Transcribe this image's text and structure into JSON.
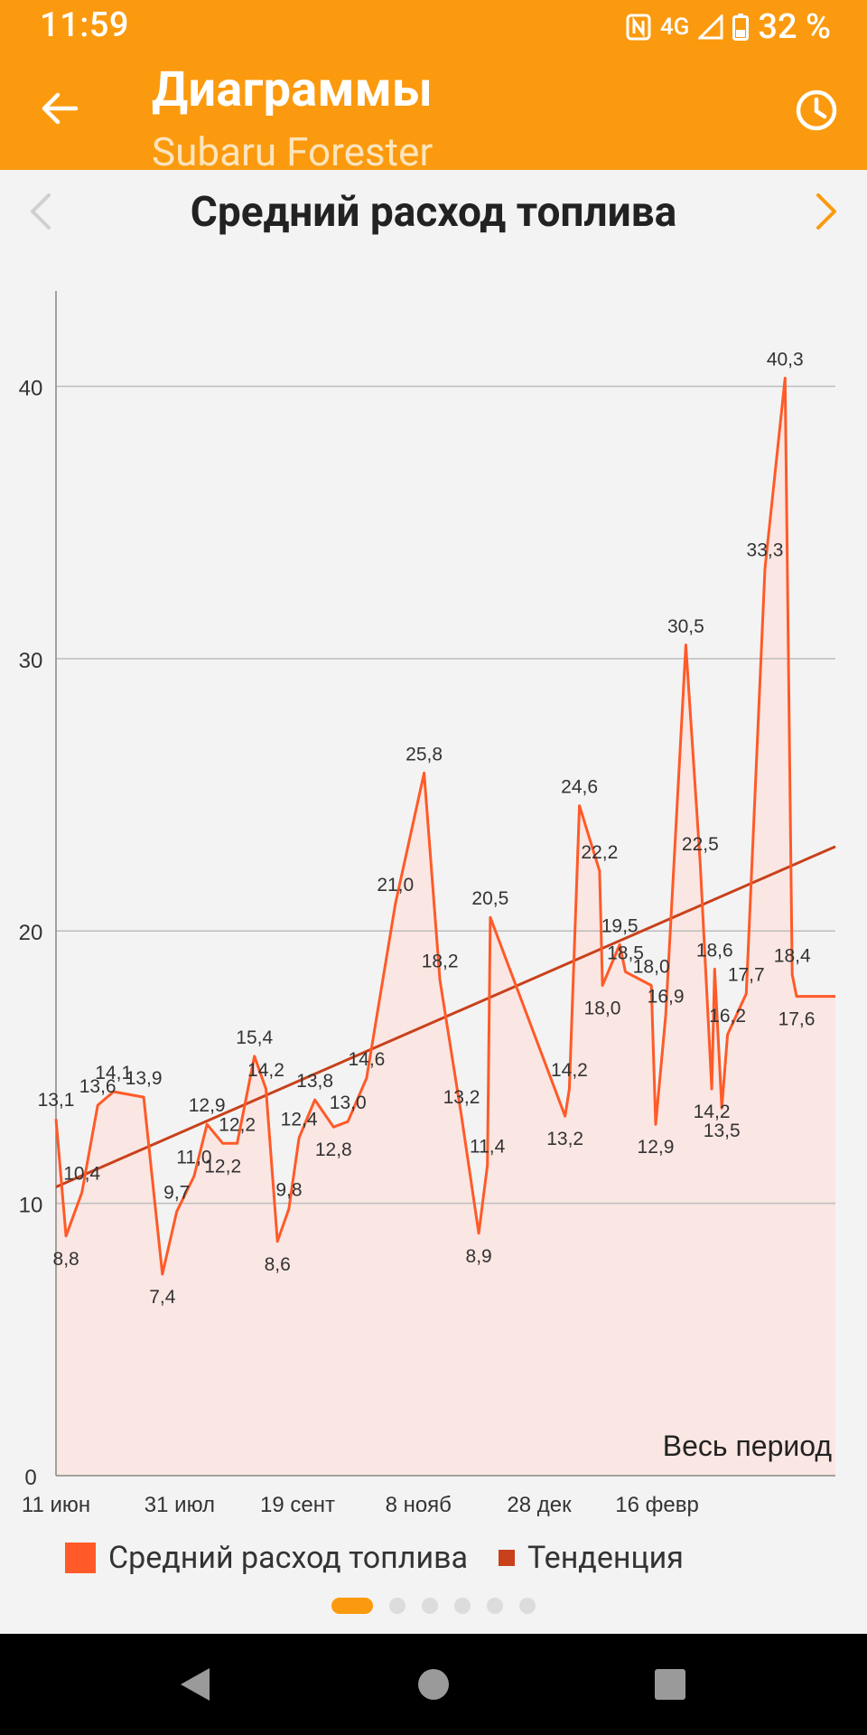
{
  "status_bar": {
    "time": "11:59",
    "network": "4G",
    "battery": "32 %"
  },
  "app_bar": {
    "title": "Диаграммы",
    "subtitle": "Subaru Forester"
  },
  "chart_header": {
    "title": "Средний расход топлива"
  },
  "colors": {
    "accent": "#fb9a0e",
    "series": "#ff5a28",
    "trend": "#c8411b",
    "area": "#fae6e2"
  },
  "chart_data": {
    "type": "area",
    "title": "Средний расход топлива",
    "period_label": "Весь период",
    "x_tick_labels": [
      "11 июн",
      "31 июл",
      "19 сент",
      "8 нояб",
      "28 дек",
      "16 февр"
    ],
    "y_ticks": [
      0,
      10,
      20,
      30,
      40
    ],
    "ylim": [
      0,
      43.5
    ],
    "grid": "horizontal",
    "legend_placement": "bottom-left",
    "series": [
      {
        "name": "Средний расход топлива",
        "x": [
          0.0,
          3.5,
          9.0,
          14.5,
          20.0,
          30.5,
          37.0,
          42.0,
          48.0,
          52.5,
          58.0,
          63.0,
          69.0,
          73.0,
          77.0,
          81.0,
          84.5,
          90.0,
          96.5,
          101.5,
          108.0,
          118.0,
          128.0,
          133.5,
          141.0,
          147.0,
          150.0,
          151.0,
          177.0,
          178.5,
          182.0,
          189.0,
          190.0,
          196.0,
          198.0,
          207.0,
          208.5,
          212.0,
          219.0,
          224.0,
          228.0,
          229.0,
          231.5,
          233.5,
          240.0,
          246.5,
          253.5,
          256.0,
          257.5,
          270.0,
          271.0
        ],
        "values": [
          13.1,
          8.8,
          10.4,
          13.6,
          14.1,
          13.9,
          7.4,
          9.7,
          11.0,
          12.9,
          12.2,
          12.2,
          15.4,
          14.2,
          8.6,
          9.8,
          12.4,
          13.8,
          12.8,
          13.0,
          14.6,
          21.0,
          25.8,
          18.2,
          13.2,
          8.9,
          11.4,
          20.5,
          13.2,
          14.2,
          24.6,
          22.2,
          18.0,
          19.5,
          18.5,
          18.0,
          12.9,
          16.9,
          30.5,
          22.5,
          14.2,
          18.6,
          13.5,
          16.2,
          17.7,
          33.3,
          40.3,
          18.4,
          17.6,
          17.6,
          17.6
        ],
        "labels": [
          "13,1",
          "8,8",
          "10,4",
          "13,6",
          "14,1",
          "13,9",
          "7,4",
          "9,7",
          "11,0",
          "12,9",
          "12,2",
          "12,2",
          "15,4",
          "14,2",
          "8,6",
          "9,8",
          "12,4",
          "13,8",
          "12,8",
          "13,0",
          "14,6",
          "21,0",
          "25,8",
          "18,2",
          "13,2",
          "8,9",
          "11,4",
          "20,5",
          "13,2",
          "14,2",
          "24,6",
          "22,2",
          "18,0",
          "19,5",
          "18,5",
          "18,0",
          "12,9",
          "16,9",
          "30,5",
          "22,5",
          "14,2",
          "18,6",
          "13,5",
          "16,2",
          "17,7",
          "33,3",
          "40,3",
          "18,4",
          "17,6",
          "",
          ""
        ]
      },
      {
        "name": "Тенденция",
        "x": [
          0.0,
          271.0
        ],
        "values": [
          10.6,
          23.1
        ]
      }
    ]
  },
  "pager": {
    "count": 6,
    "active": 0
  }
}
